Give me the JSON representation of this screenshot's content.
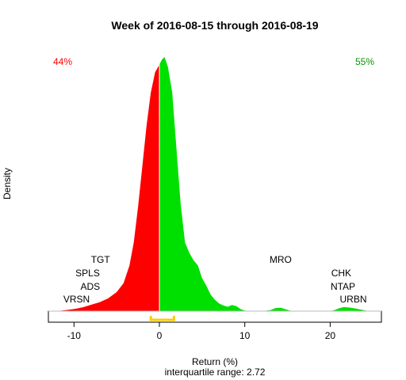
{
  "chart_data": {
    "type": "area",
    "title": "Week of 2016-08-15 through 2016-08-19",
    "xlabel": "Return (%)",
    "ylabel": "Density",
    "subtitle": "interquartile range: 2.72",
    "xlim": [
      -13,
      26
    ],
    "x_ticks": [
      -10,
      0,
      10,
      20
    ],
    "ylim": [
      0,
      1
    ],
    "split_at": 0,
    "negative_share_label": "44%",
    "positive_share_label": "55%",
    "colors": {
      "negative": "#ff0000",
      "positive": "#00e000",
      "iqr": "#ffcc00"
    },
    "density": [
      [
        -12.0,
        0.0
      ],
      [
        -11.0,
        0.004
      ],
      [
        -10.0,
        0.008
      ],
      [
        -9.0,
        0.015
      ],
      [
        -8.0,
        0.025
      ],
      [
        -7.0,
        0.035
      ],
      [
        -6.0,
        0.05
      ],
      [
        -5.0,
        0.075
      ],
      [
        -4.2,
        0.11
      ],
      [
        -3.5,
        0.18
      ],
      [
        -3.0,
        0.27
      ],
      [
        -2.5,
        0.41
      ],
      [
        -2.0,
        0.57
      ],
      [
        -1.5,
        0.73
      ],
      [
        -1.0,
        0.86
      ],
      [
        -0.5,
        0.94
      ],
      [
        0.0,
        0.97
      ],
      [
        0.3,
        0.99
      ],
      [
        0.6,
        1.0
      ],
      [
        1.0,
        0.96
      ],
      [
        1.5,
        0.86
      ],
      [
        2.0,
        0.64
      ],
      [
        2.5,
        0.42
      ],
      [
        3.0,
        0.27
      ],
      [
        3.5,
        0.23
      ],
      [
        4.0,
        0.2
      ],
      [
        4.5,
        0.18
      ],
      [
        5.0,
        0.13
      ],
      [
        5.5,
        0.1
      ],
      [
        6.0,
        0.065
      ],
      [
        6.5,
        0.045
      ],
      [
        7.0,
        0.03
      ],
      [
        7.5,
        0.022
      ],
      [
        8.0,
        0.017
      ],
      [
        8.5,
        0.024
      ],
      [
        9.0,
        0.02
      ],
      [
        9.5,
        0.008
      ],
      [
        10.0,
        0.002
      ],
      [
        11.0,
        0.0
      ],
      [
        12.0,
        0.0
      ],
      [
        13.0,
        0.004
      ],
      [
        13.6,
        0.012
      ],
      [
        14.2,
        0.013
      ],
      [
        14.8,
        0.007
      ],
      [
        15.5,
        0.0
      ],
      [
        20.0,
        0.0
      ],
      [
        20.5,
        0.004
      ],
      [
        21.0,
        0.011
      ],
      [
        21.6,
        0.016
      ],
      [
        22.3,
        0.014
      ],
      [
        23.0,
        0.01
      ],
      [
        23.6,
        0.006
      ],
      [
        24.2,
        0.002
      ],
      [
        25.0,
        0.0
      ]
    ],
    "iqr": [
      -1.0,
      1.72
    ],
    "annotations": [
      {
        "text": "TGT",
        "x": -6.9,
        "level": 3
      },
      {
        "text": "SPLS",
        "x": -8.4,
        "level": 2
      },
      {
        "text": "ADS",
        "x": -8.1,
        "level": 1
      },
      {
        "text": "VRSN",
        "x": -9.7,
        "level": 0
      },
      {
        "text": "MRO",
        "x": 14.2,
        "level": 3
      },
      {
        "text": "CHK",
        "x": 21.3,
        "level": 2
      },
      {
        "text": "NTAP",
        "x": 21.5,
        "level": 1
      },
      {
        "text": "URBN",
        "x": 22.7,
        "level": 0
      }
    ]
  }
}
